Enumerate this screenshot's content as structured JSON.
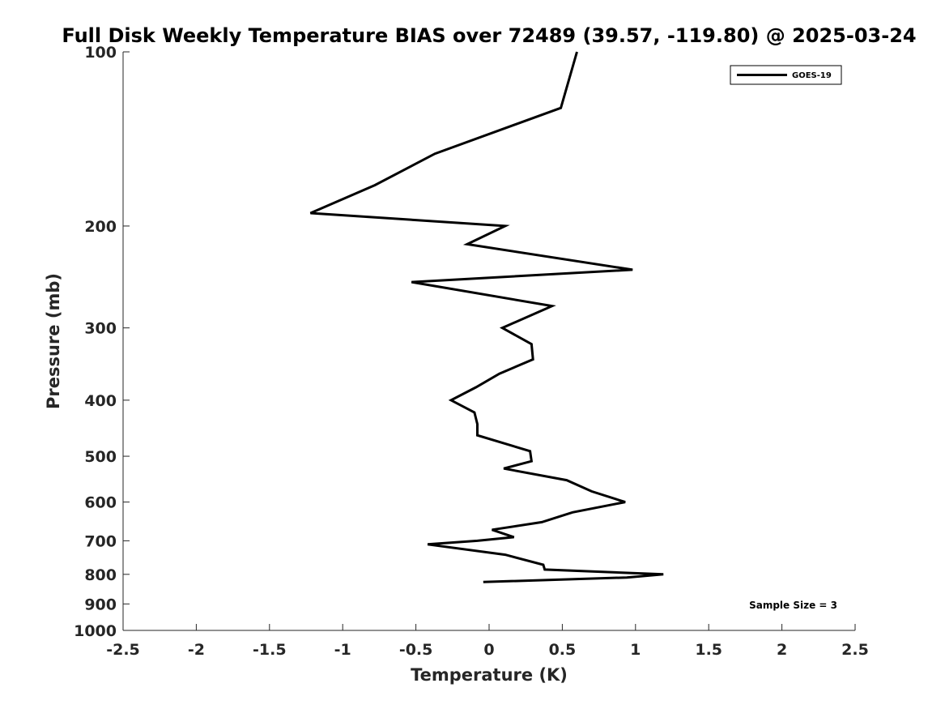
{
  "chart_data": {
    "type": "line",
    "title": "Full Disk Weekly Temperature BIAS over 72489 (39.57, -119.80) @ 2025-03-24",
    "xlabel": "Temperature (K)",
    "ylabel": "Pressure (mb)",
    "xlim": [
      -2.5,
      2.5
    ],
    "ylim": [
      100,
      1000
    ],
    "y_scale": "log",
    "y_reversed": true,
    "grid": false,
    "legend_position": "top-right",
    "x_ticks": [
      -2.5,
      -2,
      -1.5,
      -1,
      -0.5,
      0,
      0.5,
      1,
      1.5,
      2,
      2.5
    ],
    "x_tick_labels": [
      "-2.5",
      "-2",
      "-1.5",
      "-1",
      "-0.5",
      "0",
      "0.5",
      "1",
      "1.5",
      "2",
      "2.5"
    ],
    "y_ticks": [
      100,
      200,
      300,
      400,
      500,
      600,
      700,
      800,
      900,
      1000
    ],
    "y_tick_labels": [
      "100",
      "200",
      "300",
      "400",
      "500",
      "600",
      "700",
      "800",
      "900",
      "1000"
    ],
    "series": [
      {
        "name": "GOES-19",
        "color": "#000000",
        "points": [
          {
            "x": 0.6,
            "y": 100
          },
          {
            "x": 0.49,
            "y": 125
          },
          {
            "x": -0.37,
            "y": 150
          },
          {
            "x": -0.78,
            "y": 170
          },
          {
            "x": -1.22,
            "y": 190
          },
          {
            "x": 0.11,
            "y": 200
          },
          {
            "x": -0.15,
            "y": 215
          },
          {
            "x": 0.98,
            "y": 238
          },
          {
            "x": -0.53,
            "y": 250
          },
          {
            "x": 0.43,
            "y": 275
          },
          {
            "x": 0.09,
            "y": 300
          },
          {
            "x": 0.29,
            "y": 320
          },
          {
            "x": 0.3,
            "y": 340
          },
          {
            "x": 0.07,
            "y": 360
          },
          {
            "x": -0.09,
            "y": 380
          },
          {
            "x": -0.26,
            "y": 400
          },
          {
            "x": -0.1,
            "y": 420
          },
          {
            "x": -0.08,
            "y": 440
          },
          {
            "x": -0.08,
            "y": 460
          },
          {
            "x": 0.28,
            "y": 490
          },
          {
            "x": 0.29,
            "y": 510
          },
          {
            "x": 0.1,
            "y": 525
          },
          {
            "x": 0.53,
            "y": 550
          },
          {
            "x": 0.7,
            "y": 575
          },
          {
            "x": 0.93,
            "y": 600
          },
          {
            "x": 0.57,
            "y": 625
          },
          {
            "x": 0.36,
            "y": 650
          },
          {
            "x": 0.02,
            "y": 670
          },
          {
            "x": 0.17,
            "y": 690
          },
          {
            "x": -0.08,
            "y": 700
          },
          {
            "x": -0.42,
            "y": 710
          },
          {
            "x": 0.11,
            "y": 740
          },
          {
            "x": 0.37,
            "y": 770
          },
          {
            "x": 0.38,
            "y": 785
          },
          {
            "x": 1.19,
            "y": 800
          },
          {
            "x": 0.94,
            "y": 810
          },
          {
            "x": -0.04,
            "y": 825
          }
        ]
      }
    ],
    "annotation": "Sample Size = 3"
  }
}
